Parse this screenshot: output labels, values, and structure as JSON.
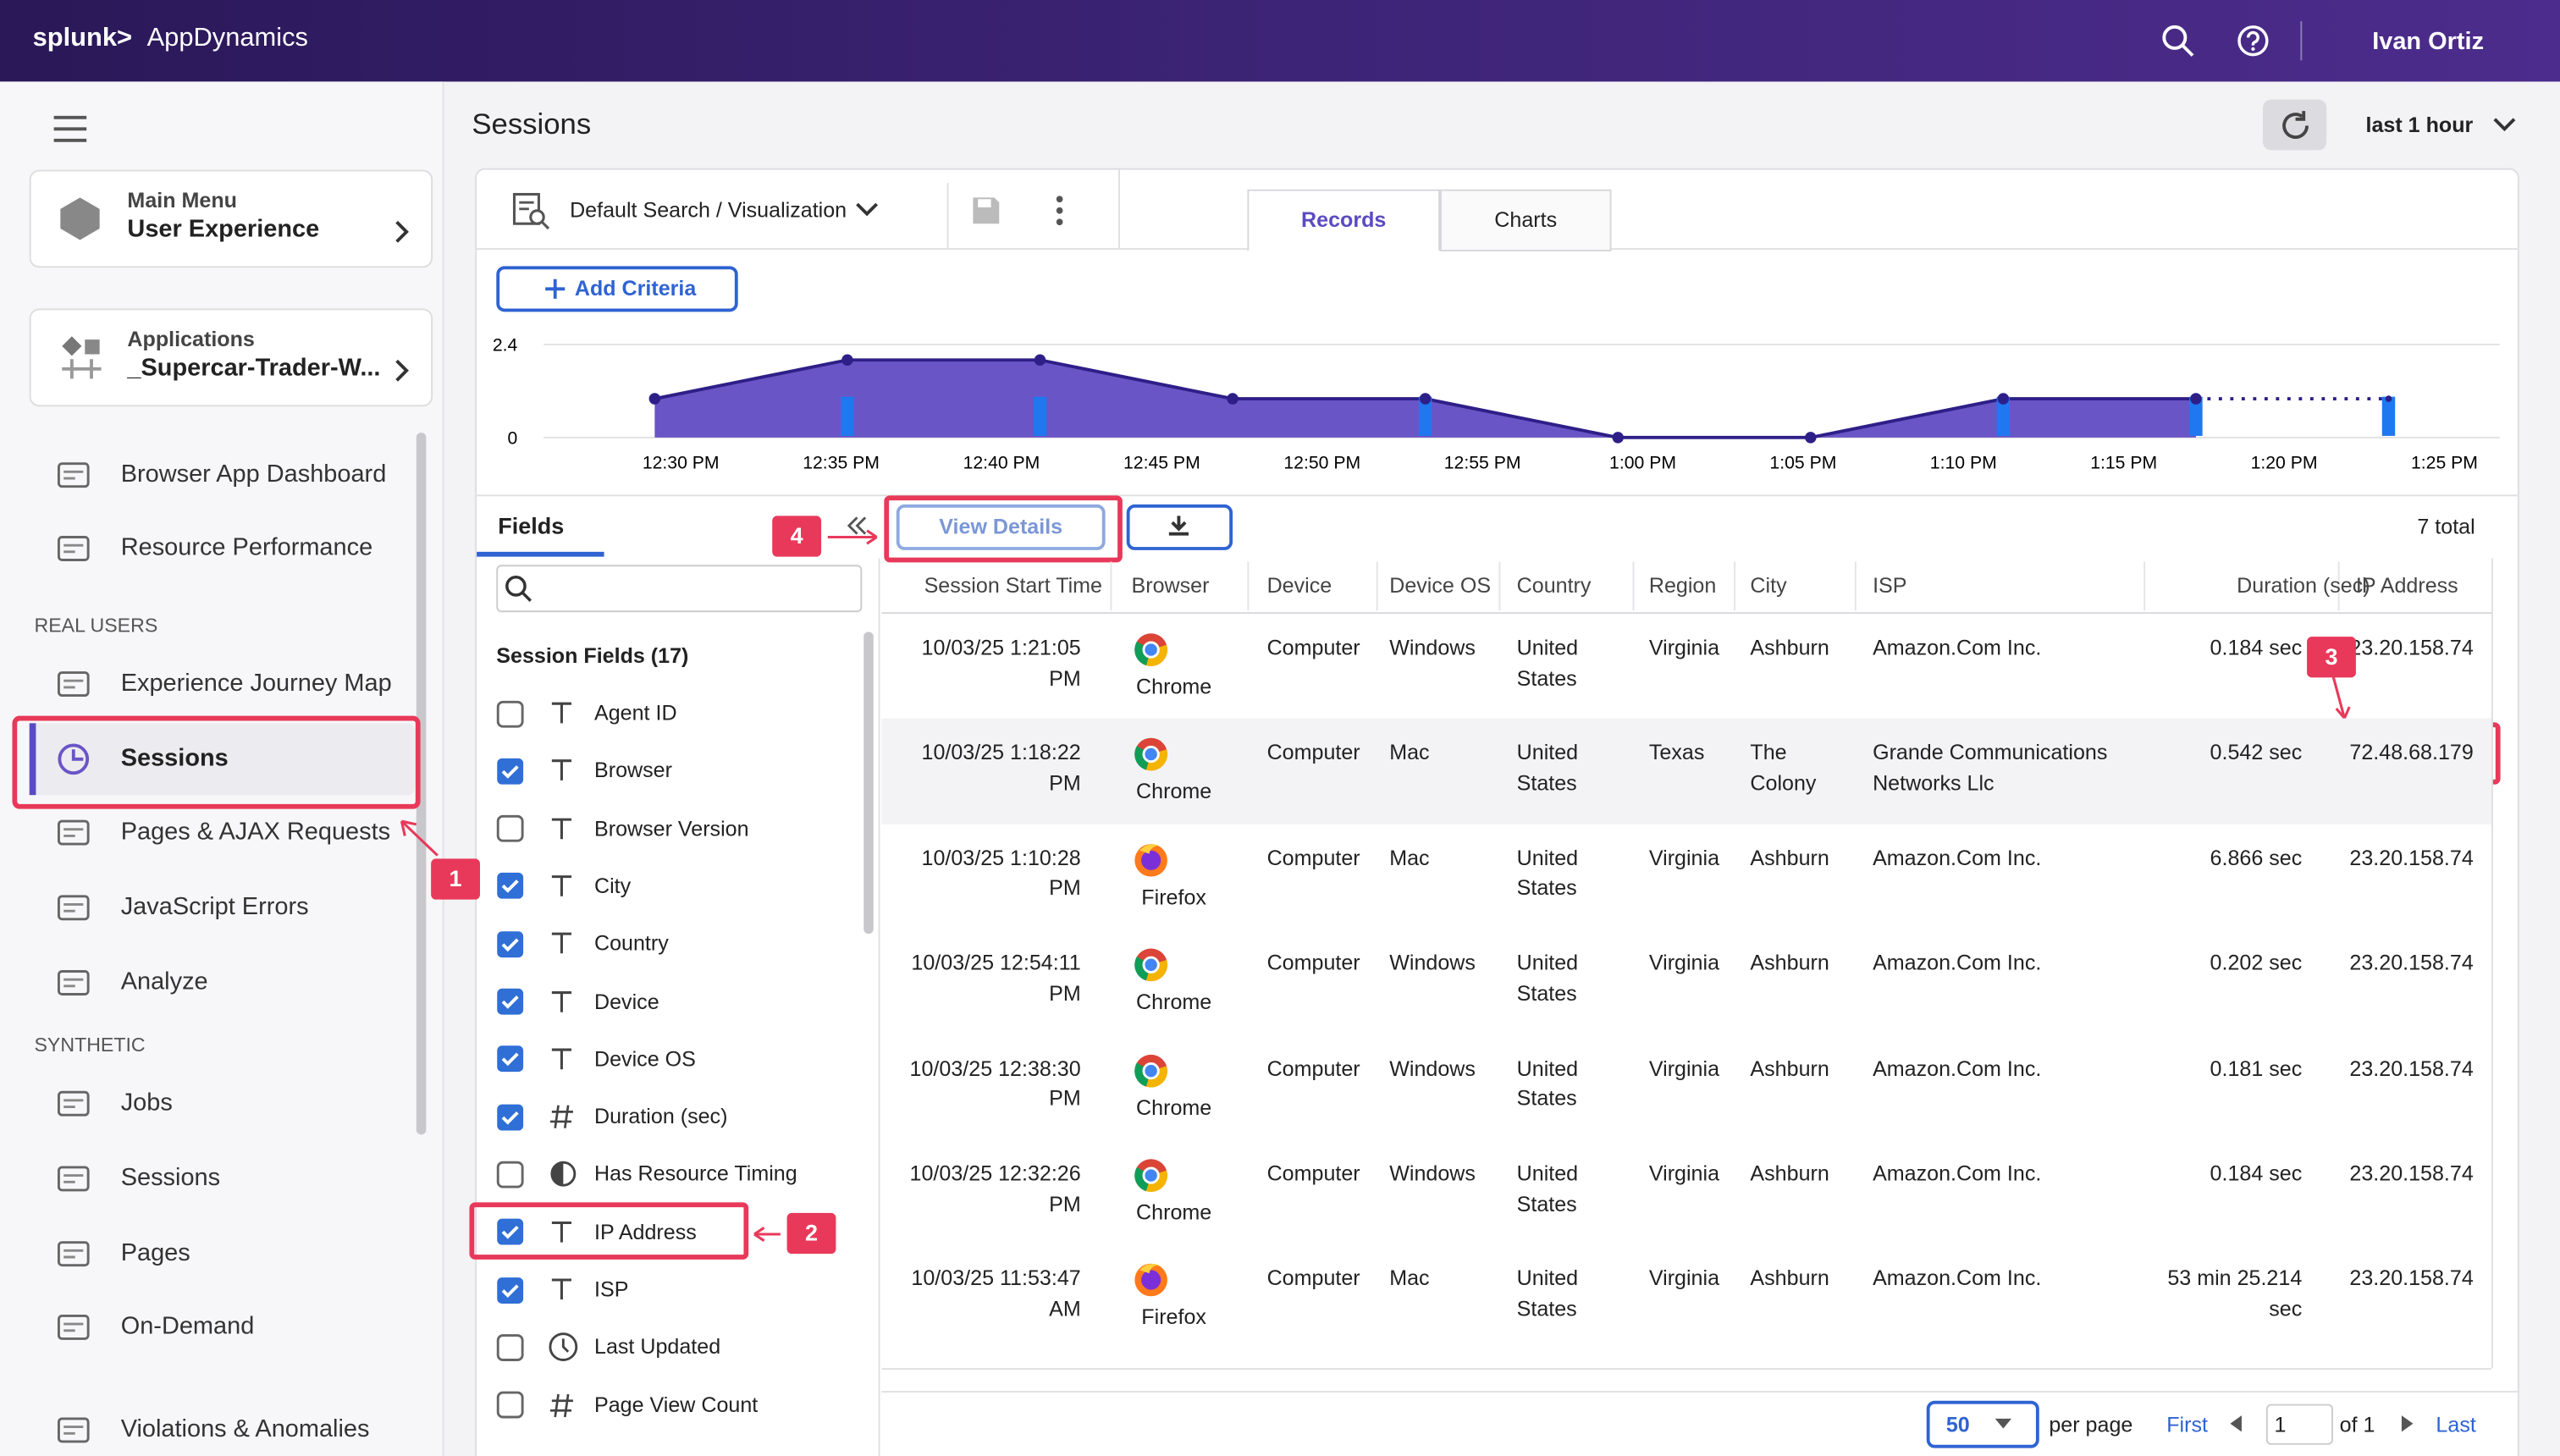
{
  "header": {
    "brand": "splunk>",
    "product": "AppDynamics",
    "user": "Ivan Ortiz"
  },
  "sidebar": {
    "main_menu": {
      "label": "Main Menu",
      "value": "User Experience"
    },
    "applications": {
      "label": "Applications",
      "value": "_Supercar-Trader-W..."
    },
    "items": [
      {
        "label": "Browser App Dashboard",
        "kind": "link"
      },
      {
        "label": "Resource Performance",
        "kind": "link"
      },
      {
        "label": "REAL USERS",
        "kind": "heading"
      },
      {
        "label": "Experience Journey Map",
        "kind": "link"
      },
      {
        "label": "Sessions",
        "kind": "link",
        "active": true
      },
      {
        "label": "Pages & AJAX Requests",
        "kind": "link"
      },
      {
        "label": "JavaScript Errors",
        "kind": "link"
      },
      {
        "label": "Analyze",
        "kind": "link"
      },
      {
        "label": "SYNTHETIC",
        "kind": "heading"
      },
      {
        "label": "Jobs",
        "kind": "link"
      },
      {
        "label": "Sessions",
        "kind": "link"
      },
      {
        "label": "Pages",
        "kind": "link"
      },
      {
        "label": "On-Demand",
        "kind": "link"
      },
      {
        "label": "Violations & Anomalies",
        "kind": "link"
      }
    ]
  },
  "page": {
    "title": "Sessions",
    "time_range": "last 1 hour"
  },
  "toolbar": {
    "search": "Default Search / Visualization",
    "tabs": [
      {
        "label": "Records",
        "selected": true
      },
      {
        "label": "Charts",
        "selected": false
      }
    ],
    "add_criteria": "Add Criteria"
  },
  "chart_data": {
    "type": "area",
    "values": [
      1,
      2,
      2,
      1,
      1,
      0,
      0,
      1,
      1,
      1
    ],
    "ylim": [
      0,
      2.4
    ],
    "yticks": [
      0,
      2.4
    ],
    "xticks": [
      "12:30 PM",
      "12:35 PM",
      "12:40 PM",
      "12:45 PM",
      "12:50 PM",
      "12:55 PM",
      "1:00 PM",
      "1:05 PM",
      "1:10 PM",
      "1:15 PM",
      "1:20 PM",
      "1:25 PM"
    ],
    "color": "#6a55c6"
  },
  "fields": {
    "tab": "Fields",
    "view_details": "View Details",
    "total": "7 total",
    "group": "Session Fields (17)",
    "items": [
      {
        "label": "Agent ID",
        "checked": false,
        "kind": "text"
      },
      {
        "label": "Browser",
        "checked": true,
        "kind": "text"
      },
      {
        "label": "Browser Version",
        "checked": false,
        "kind": "text"
      },
      {
        "label": "City",
        "checked": true,
        "kind": "text"
      },
      {
        "label": "Country",
        "checked": true,
        "kind": "text"
      },
      {
        "label": "Device",
        "checked": true,
        "kind": "text"
      },
      {
        "label": "Device OS",
        "checked": true,
        "kind": "text"
      },
      {
        "label": "Duration (sec)",
        "checked": true,
        "kind": "number"
      },
      {
        "label": "Has Resource Timing",
        "checked": false,
        "kind": "boolean"
      },
      {
        "label": "IP Address",
        "checked": true,
        "kind": "text"
      },
      {
        "label": "ISP",
        "checked": true,
        "kind": "text"
      },
      {
        "label": "Last Updated",
        "checked": false,
        "kind": "time"
      },
      {
        "label": "Page View Count",
        "checked": false,
        "kind": "number"
      }
    ]
  },
  "table": {
    "columns": [
      "Session Start Time",
      "Browser",
      "Device",
      "Device OS",
      "Country",
      "Region",
      "City",
      "ISP",
      "Duration (sec)",
      "IP Address"
    ],
    "highlighted_row": 1,
    "rows": [
      [
        "10/03/25 1:21:05 PM",
        "Chrome",
        "Computer",
        "Windows",
        "United States",
        "Virginia",
        "Ashburn",
        "Amazon.Com Inc.",
        "0.184 sec",
        "23.20.158.74"
      ],
      [
        "10/03/25 1:18:22 PM",
        "Chrome",
        "Computer",
        "Mac",
        "United States",
        "Texas",
        "The Colony",
        "Grande Communications Networks Llc",
        "0.542 sec",
        "72.48.68.179"
      ],
      [
        "10/03/25 1:10:28 PM",
        "Firefox",
        "Computer",
        "Mac",
        "United States",
        "Virginia",
        "Ashburn",
        "Amazon.Com Inc.",
        "6.866 sec",
        "23.20.158.74"
      ],
      [
        "10/03/25 12:54:11 PM",
        "Chrome",
        "Computer",
        "Windows",
        "United States",
        "Virginia",
        "Ashburn",
        "Amazon.Com Inc.",
        "0.202 sec",
        "23.20.158.74"
      ],
      [
        "10/03/25 12:38:30 PM",
        "Chrome",
        "Computer",
        "Windows",
        "United States",
        "Virginia",
        "Ashburn",
        "Amazon.Com Inc.",
        "0.181 sec",
        "23.20.158.74"
      ],
      [
        "10/03/25 12:32:26 PM",
        "Chrome",
        "Computer",
        "Windows",
        "United States",
        "Virginia",
        "Ashburn",
        "Amazon.Com Inc.",
        "0.184 sec",
        "23.20.158.74"
      ],
      [
        "10/03/25 11:53:47 AM",
        "Firefox",
        "Computer",
        "Mac",
        "United States",
        "Virginia",
        "Ashburn",
        "Amazon.Com Inc.",
        "53 min 25.214 sec",
        "23.20.158.74"
      ]
    ]
  },
  "pagination": {
    "per_page_value": 50,
    "per_page": "per page",
    "first": "First",
    "page": 1,
    "of": "of 1",
    "last": "Last"
  },
  "annotations": [
    1,
    2,
    3,
    4
  ]
}
